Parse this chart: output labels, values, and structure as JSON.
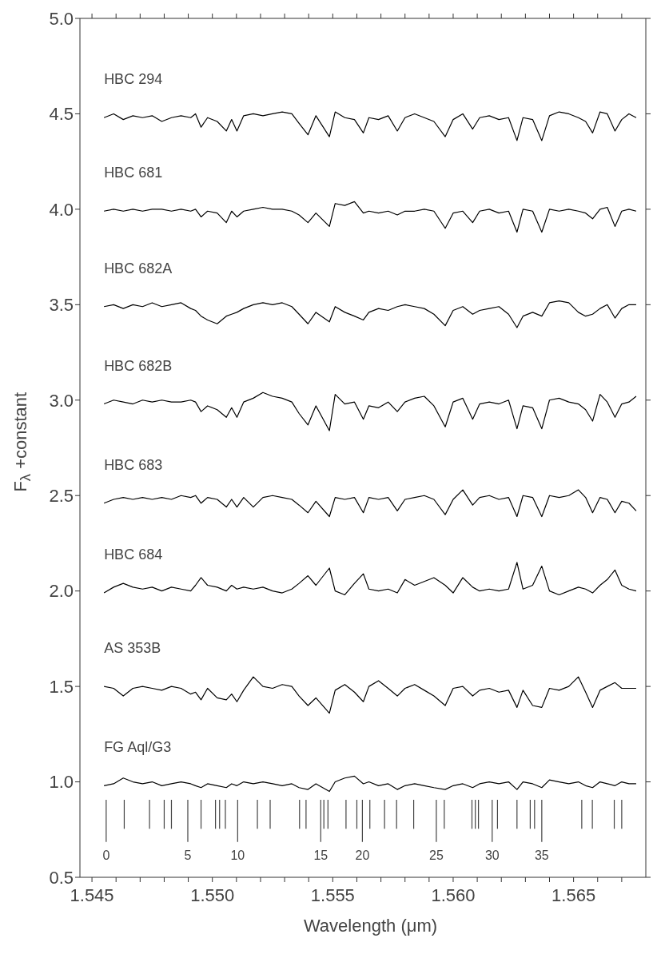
{
  "chart_data": {
    "type": "line",
    "xlabel": "Wavelength (μm)",
    "ylabel": "F$_{λ}$ +constant",
    "marker": "none",
    "line_style": "solid",
    "xlim": [
      1.5445,
      1.568
    ],
    "xticks": [
      {
        "value": 1.545,
        "label": "1.545"
      },
      {
        "value": 1.546,
        "label": null
      },
      {
        "value": 1.547,
        "label": null
      },
      {
        "value": 1.548,
        "label": null
      },
      {
        "value": 1.549,
        "label": null
      },
      {
        "value": 1.55,
        "label": "1.550"
      },
      {
        "value": 1.551,
        "label": null
      },
      {
        "value": 1.552,
        "label": null
      },
      {
        "value": 1.553,
        "label": null
      },
      {
        "value": 1.554,
        "label": null
      },
      {
        "value": 1.555,
        "label": "1.555"
      },
      {
        "value": 1.556,
        "label": null
      },
      {
        "value": 1.557,
        "label": null
      },
      {
        "value": 1.558,
        "label": null
      },
      {
        "value": 1.559,
        "label": null
      },
      {
        "value": 1.56,
        "label": "1.560"
      },
      {
        "value": 1.561,
        "label": null
      },
      {
        "value": 1.562,
        "label": null
      },
      {
        "value": 1.563,
        "label": null
      },
      {
        "value": 1.564,
        "label": null
      },
      {
        "value": 1.565,
        "label": "1.565"
      },
      {
        "value": 1.566,
        "label": null
      },
      {
        "value": 1.567,
        "label": null
      }
    ],
    "ylim": [
      0.5,
      5.0
    ],
    "yticks": [
      {
        "value": 0.5,
        "label": "0.5"
      },
      {
        "value": 1,
        "label": "1.0"
      },
      {
        "value": 1.5,
        "label": "1.5"
      },
      {
        "value": 2,
        "label": "2.0"
      },
      {
        "value": 2.5,
        "label": "2.5"
      },
      {
        "value": 3,
        "label": "3.0"
      },
      {
        "value": 3.5,
        "label": "3.5"
      },
      {
        "value": 4,
        "label": "4.0"
      },
      {
        "value": 4.5,
        "label": "4.5"
      },
      {
        "value": 5,
        "label": "5.0"
      }
    ],
    "x": [
      1.5455,
      1.5459,
      1.5463,
      1.5467,
      1.5471,
      1.5475,
      1.5479,
      1.5483,
      1.5487,
      1.5491,
      1.5493,
      1.54953,
      1.5498,
      1.5502,
      1.55058,
      1.5508,
      1.55102,
      1.5513,
      1.5517,
      1.5521,
      1.5525,
      1.5529,
      1.5533,
      1.5536,
      1.55397,
      1.5543,
      1.55486,
      1.5551,
      1.5555,
      1.5559,
      1.55627,
      1.5565,
      1.5569,
      1.5573,
      1.55768,
      1.558,
      1.5584,
      1.5588,
      1.5592,
      1.55967,
      1.56,
      1.5604,
      1.56081,
      1.5611,
      1.5615,
      1.5619,
      1.5623,
      1.56265,
      1.5629,
      1.5633,
      1.56368,
      1.564,
      1.5644,
      1.5648,
      1.5652,
      1.5655,
      1.56579,
      1.5661,
      1.5664,
      1.56672,
      1.567,
      1.5673,
      1.5676
    ],
    "series": [
      {
        "name": "HBC 294",
        "color": "#000000",
        "values": [
          4.48,
          4.5,
          4.47,
          4.49,
          4.48,
          4.49,
          4.46,
          4.48,
          4.49,
          4.48,
          4.5,
          4.43,
          4.48,
          4.46,
          4.41,
          4.47,
          4.41,
          4.49,
          4.5,
          4.49,
          4.5,
          4.51,
          4.5,
          4.45,
          4.39,
          4.49,
          4.38,
          4.51,
          4.48,
          4.47,
          4.4,
          4.48,
          4.47,
          4.49,
          4.41,
          4.48,
          4.5,
          4.48,
          4.46,
          4.38,
          4.47,
          4.5,
          4.42,
          4.48,
          4.49,
          4.47,
          4.48,
          4.36,
          4.48,
          4.47,
          4.36,
          4.49,
          4.51,
          4.5,
          4.48,
          4.46,
          4.4,
          4.51,
          4.5,
          4.41,
          4.47,
          4.5,
          4.48
        ]
      },
      {
        "name": "HBC 681",
        "color": "#000000",
        "values": [
          3.99,
          4.0,
          3.99,
          4.0,
          3.99,
          4.0,
          4.0,
          3.99,
          4.0,
          3.99,
          4.0,
          3.96,
          3.99,
          3.98,
          3.93,
          3.99,
          3.96,
          3.99,
          4.0,
          4.01,
          4.0,
          4.0,
          3.99,
          3.97,
          3.93,
          3.98,
          3.91,
          4.03,
          4.02,
          4.04,
          3.98,
          3.99,
          3.98,
          3.99,
          3.97,
          3.99,
          3.99,
          4.0,
          3.99,
          3.9,
          3.98,
          3.99,
          3.93,
          3.99,
          4.0,
          3.98,
          3.99,
          3.88,
          4.0,
          3.99,
          3.88,
          4.0,
          3.99,
          4.0,
          3.99,
          3.98,
          3.95,
          4.0,
          4.01,
          3.91,
          3.99,
          4.0,
          3.99
        ]
      },
      {
        "name": "HBC 682A",
        "color": "#000000",
        "values": [
          3.49,
          3.5,
          3.48,
          3.5,
          3.49,
          3.51,
          3.49,
          3.5,
          3.51,
          3.48,
          3.47,
          3.44,
          3.42,
          3.4,
          3.44,
          3.45,
          3.46,
          3.48,
          3.5,
          3.51,
          3.5,
          3.51,
          3.49,
          3.45,
          3.4,
          3.46,
          3.41,
          3.49,
          3.46,
          3.44,
          3.42,
          3.46,
          3.48,
          3.47,
          3.49,
          3.5,
          3.49,
          3.48,
          3.45,
          3.39,
          3.47,
          3.49,
          3.45,
          3.47,
          3.48,
          3.49,
          3.45,
          3.38,
          3.44,
          3.46,
          3.44,
          3.51,
          3.52,
          3.51,
          3.46,
          3.44,
          3.45,
          3.48,
          3.5,
          3.43,
          3.48,
          3.5,
          3.5
        ]
      },
      {
        "name": "HBC 682B",
        "color": "#000000",
        "values": [
          2.98,
          3.0,
          2.99,
          2.98,
          3.0,
          2.99,
          3.0,
          2.99,
          2.99,
          3.0,
          2.99,
          2.94,
          2.97,
          2.95,
          2.91,
          2.96,
          2.91,
          2.99,
          3.01,
          3.04,
          3.02,
          3.01,
          2.99,
          2.93,
          2.87,
          2.97,
          2.84,
          3.03,
          2.98,
          2.99,
          2.9,
          2.97,
          2.96,
          2.99,
          2.94,
          2.99,
          3.01,
          3.02,
          2.97,
          2.86,
          2.99,
          3.01,
          2.9,
          2.98,
          2.99,
          2.98,
          3.0,
          2.85,
          2.97,
          2.96,
          2.85,
          3.0,
          3.01,
          2.99,
          2.98,
          2.95,
          2.89,
          3.03,
          2.99,
          2.91,
          2.98,
          2.99,
          3.02
        ]
      },
      {
        "name": "HBC 683",
        "color": "#000000",
        "values": [
          2.46,
          2.48,
          2.49,
          2.48,
          2.49,
          2.48,
          2.49,
          2.48,
          2.5,
          2.49,
          2.5,
          2.46,
          2.49,
          2.48,
          2.44,
          2.48,
          2.44,
          2.49,
          2.44,
          2.49,
          2.5,
          2.49,
          2.48,
          2.45,
          2.41,
          2.47,
          2.39,
          2.49,
          2.48,
          2.49,
          2.41,
          2.49,
          2.48,
          2.49,
          2.42,
          2.48,
          2.49,
          2.5,
          2.48,
          2.4,
          2.48,
          2.53,
          2.45,
          2.49,
          2.5,
          2.48,
          2.49,
          2.39,
          2.5,
          2.49,
          2.39,
          2.5,
          2.49,
          2.5,
          2.53,
          2.49,
          2.41,
          2.49,
          2.48,
          2.41,
          2.47,
          2.46,
          2.42
        ]
      },
      {
        "name": "HBC 684",
        "color": "#000000",
        "values": [
          1.99,
          2.02,
          2.04,
          2.02,
          2.01,
          2.02,
          2.0,
          2.02,
          2.01,
          2.0,
          2.03,
          2.07,
          2.03,
          2.02,
          2.0,
          2.03,
          2.01,
          2.02,
          2.01,
          2.02,
          2.0,
          1.99,
          2.01,
          2.04,
          2.08,
          2.03,
          2.12,
          2.0,
          1.98,
          2.04,
          2.09,
          2.01,
          2.0,
          2.01,
          1.99,
          2.06,
          2.03,
          2.05,
          2.07,
          2.03,
          1.99,
          2.07,
          2.02,
          2.0,
          2.01,
          2.0,
          2.01,
          2.15,
          2.01,
          2.03,
          2.13,
          2.0,
          1.98,
          2.0,
          2.02,
          2.01,
          1.99,
          2.03,
          2.06,
          2.11,
          2.03,
          2.01,
          2.0
        ]
      },
      {
        "name": "AS 353B",
        "color": "#000000",
        "values": [
          1.5,
          1.49,
          1.45,
          1.49,
          1.5,
          1.49,
          1.48,
          1.5,
          1.49,
          1.46,
          1.47,
          1.43,
          1.49,
          1.44,
          1.43,
          1.46,
          1.42,
          1.48,
          1.55,
          1.5,
          1.49,
          1.51,
          1.5,
          1.45,
          1.4,
          1.44,
          1.36,
          1.48,
          1.51,
          1.47,
          1.42,
          1.5,
          1.53,
          1.49,
          1.45,
          1.49,
          1.51,
          1.48,
          1.45,
          1.4,
          1.49,
          1.5,
          1.45,
          1.48,
          1.49,
          1.47,
          1.48,
          1.39,
          1.48,
          1.4,
          1.39,
          1.49,
          1.48,
          1.5,
          1.55,
          1.47,
          1.39,
          1.48,
          1.5,
          1.52,
          1.49,
          1.49,
          1.49
        ]
      },
      {
        "name": "FG Aql/G3",
        "color": "#000000",
        "values": [
          0.98,
          0.99,
          1.02,
          1.0,
          0.99,
          1.0,
          0.98,
          0.99,
          1.0,
          0.99,
          0.98,
          0.97,
          0.99,
          0.98,
          0.97,
          0.99,
          0.98,
          1.0,
          0.99,
          1.0,
          0.99,
          0.98,
          0.99,
          0.97,
          0.96,
          0.99,
          0.95,
          1.0,
          1.02,
          1.03,
          0.99,
          1.0,
          0.98,
          0.99,
          0.96,
          0.98,
          0.99,
          0.98,
          0.97,
          0.96,
          0.98,
          0.99,
          0.97,
          0.99,
          1.0,
          0.99,
          1.0,
          0.96,
          1.0,
          0.99,
          0.97,
          1.01,
          1.0,
          0.99,
          1.0,
          0.98,
          0.97,
          1.0,
          0.99,
          0.98,
          1.0,
          0.99,
          0.99
        ]
      },
      {
        "color": "#444444",
        "x": [
          1.54559,
          1.54559
        ],
        "values": [
          0.906,
          0.685
        ]
      },
      {
        "color": "#444444",
        "x": [
          1.54634,
          1.54634
        ],
        "values": [
          0.906,
          0.754
        ]
      },
      {
        "color": "#444444",
        "x": [
          1.54739,
          1.54739
        ],
        "values": [
          0.906,
          0.754
        ]
      },
      {
        "color": "#444444",
        "x": [
          1.548,
          1.548
        ],
        "values": [
          0.906,
          0.754
        ]
      },
      {
        "color": "#444444",
        "x": [
          1.5483,
          1.5483
        ],
        "values": [
          0.906,
          0.754
        ]
      },
      {
        "color": "#444444",
        "x": [
          1.54898,
          1.54898
        ],
        "values": [
          0.906,
          0.685
        ]
      },
      {
        "color": "#444444",
        "x": [
          1.54953,
          1.54953
        ],
        "values": [
          0.906,
          0.754
        ]
      },
      {
        "color": "#444444",
        "x": [
          1.55013,
          1.55013
        ],
        "values": [
          0.906,
          0.754
        ]
      },
      {
        "color": "#444444",
        "x": [
          1.5503,
          1.5503
        ],
        "values": [
          0.906,
          0.754
        ]
      },
      {
        "color": "#444444",
        "x": [
          1.55054,
          1.55054
        ],
        "values": [
          0.906,
          0.754
        ]
      },
      {
        "color": "#444444",
        "x": [
          1.55105,
          1.55105
        ],
        "values": [
          0.906,
          0.685
        ]
      },
      {
        "color": "#444444",
        "x": [
          1.55187,
          1.55187
        ],
        "values": [
          0.906,
          0.754
        ]
      },
      {
        "color": "#444444",
        "x": [
          1.5524,
          1.5524
        ],
        "values": [
          0.906,
          0.754
        ]
      },
      {
        "color": "#444444",
        "x": [
          1.55362,
          1.55362
        ],
        "values": [
          0.906,
          0.754
        ]
      },
      {
        "color": "#444444",
        "x": [
          1.55389,
          1.55389
        ],
        "values": [
          0.906,
          0.754
        ]
      },
      {
        "color": "#444444",
        "x": [
          1.5545,
          1.5545
        ],
        "values": [
          0.906,
          0.685
        ]
      },
      {
        "color": "#444444",
        "x": [
          1.55463,
          1.55463
        ],
        "values": [
          0.906,
          0.754
        ]
      },
      {
        "color": "#444444",
        "x": [
          1.5548,
          1.5548
        ],
        "values": [
          0.906,
          0.754
        ]
      },
      {
        "color": "#444444",
        "x": [
          1.55555,
          1.55555
        ],
        "values": [
          0.906,
          0.754
        ]
      },
      {
        "color": "#444444",
        "x": [
          1.556,
          1.556
        ],
        "values": [
          0.906,
          0.754
        ]
      },
      {
        "color": "#444444",
        "x": [
          1.55623,
          1.55623
        ],
        "values": [
          0.906,
          0.685
        ]
      },
      {
        "color": "#444444",
        "x": [
          1.55654,
          1.55654
        ],
        "values": [
          0.906,
          0.754
        ]
      },
      {
        "color": "#444444",
        "x": [
          1.55715,
          1.55715
        ],
        "values": [
          0.906,
          0.754
        ]
      },
      {
        "color": "#444444",
        "x": [
          1.55765,
          1.55765
        ],
        "values": [
          0.906,
          0.754
        ]
      },
      {
        "color": "#444444",
        "x": [
          1.55836,
          1.55836
        ],
        "values": [
          0.906,
          0.754
        ]
      },
      {
        "color": "#444444",
        "x": [
          1.5593,
          1.5593
        ],
        "values": [
          0.906,
          0.685
        ]
      },
      {
        "color": "#444444",
        "x": [
          1.55963,
          1.55963
        ],
        "values": [
          0.906,
          0.754
        ]
      },
      {
        "color": "#444444",
        "x": [
          1.56078,
          1.56078
        ],
        "values": [
          0.906,
          0.754
        ]
      },
      {
        "color": "#444444",
        "x": [
          1.56092,
          1.56092
        ],
        "values": [
          0.906,
          0.754
        ]
      },
      {
        "color": "#444444",
        "x": [
          1.56105,
          1.56105
        ],
        "values": [
          0.906,
          0.754
        ]
      },
      {
        "color": "#444444",
        "x": [
          1.56162,
          1.56162
        ],
        "values": [
          0.906,
          0.685
        ]
      },
      {
        "color": "#444444",
        "x": [
          1.56184,
          1.56184
        ],
        "values": [
          0.906,
          0.754
        ]
      },
      {
        "color": "#444444",
        "x": [
          1.56265,
          1.56265
        ],
        "values": [
          0.906,
          0.754
        ]
      },
      {
        "color": "#444444",
        "x": [
          1.5632,
          1.5632
        ],
        "values": [
          0.906,
          0.754
        ]
      },
      {
        "color": "#444444",
        "x": [
          1.56338,
          1.56338
        ],
        "values": [
          0.906,
          0.754
        ]
      },
      {
        "color": "#444444",
        "x": [
          1.56368,
          1.56368
        ],
        "values": [
          0.906,
          0.685
        ]
      },
      {
        "color": "#444444",
        "x": [
          1.56534,
          1.56534
        ],
        "values": [
          0.906,
          0.754
        ]
      },
      {
        "color": "#444444",
        "x": [
          1.56578,
          1.56578
        ],
        "values": [
          0.906,
          0.754
        ]
      },
      {
        "color": "#444444",
        "x": [
          1.56669,
          1.56669
        ],
        "values": [
          0.906,
          0.754
        ]
      },
      {
        "color": "#444444",
        "x": [
          1.567,
          1.567
        ],
        "values": [
          0.906,
          0.754
        ]
      }
    ],
    "annotations": [
      "0",
      "5",
      "10",
      "15",
      "20",
      "25",
      "30",
      "35"
    ]
  }
}
